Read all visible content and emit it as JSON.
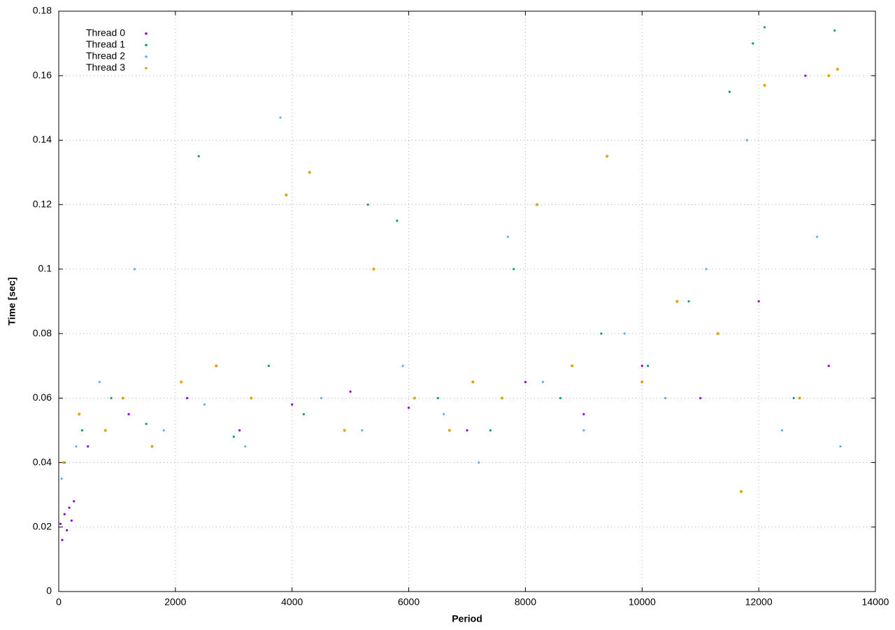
{
  "chart_data": {
    "type": "scatter",
    "x_label": "Period",
    "y_label": "Time [sec]",
    "xlim": [
      0,
      14000
    ],
    "ylim": [
      0,
      0.18
    ],
    "xticks": [
      0,
      2000,
      4000,
      6000,
      8000,
      10000,
      12000,
      14000
    ],
    "yticks": [
      0,
      0.02,
      0.04,
      0.06,
      0.08,
      0.1,
      0.12,
      0.14,
      0.16,
      0.18
    ],
    "grid": true,
    "legend": "top-left",
    "series": [
      {
        "name": "Thread 0",
        "color": "#9400d3",
        "x": [
          30,
          60,
          100,
          140,
          180,
          220,
          260,
          500,
          1200,
          2200,
          3100,
          4000,
          5000,
          6000,
          7000,
          8000,
          9000,
          10000,
          11000,
          12000,
          12800,
          13200
        ],
        "values": [
          0.021,
          0.016,
          0.024,
          0.019,
          0.026,
          0.022,
          0.028,
          0.045,
          0.055,
          0.06,
          0.05,
          0.058,
          0.062,
          0.057,
          0.05,
          0.065,
          0.055,
          0.07,
          0.06,
          0.09,
          0.16,
          0.07
        ]
      },
      {
        "name": "Thread 1",
        "color": "#009e73",
        "x": [
          100,
          400,
          900,
          1500,
          2400,
          3000,
          3600,
          4200,
          5300,
          5800,
          6500,
          7400,
          7800,
          8600,
          9300,
          10100,
          10800,
          11500,
          11900,
          12100,
          12600,
          13300
        ],
        "values": [
          0.04,
          0.05,
          0.06,
          0.052,
          0.135,
          0.048,
          0.07,
          0.055,
          0.12,
          0.115,
          0.06,
          0.05,
          0.1,
          0.06,
          0.08,
          0.07,
          0.09,
          0.155,
          0.17,
          0.175,
          0.06,
          0.174
        ]
      },
      {
        "name": "Thread 2",
        "color": "#56b4e9",
        "x": [
          50,
          300,
          700,
          1300,
          1800,
          2500,
          3200,
          3800,
          4500,
          5200,
          5900,
          6600,
          7200,
          7700,
          8300,
          9000,
          9700,
          10400,
          11100,
          11800,
          12400,
          13000,
          13400
        ],
        "values": [
          0.035,
          0.045,
          0.065,
          0.1,
          0.05,
          0.058,
          0.045,
          0.147,
          0.06,
          0.05,
          0.07,
          0.055,
          0.04,
          0.11,
          0.065,
          0.05,
          0.08,
          0.06,
          0.1,
          0.14,
          0.05,
          0.11,
          0.045
        ]
      },
      {
        "name": "Thread 3",
        "color": "#e69f00",
        "x": [
          80,
          350,
          800,
          1100,
          1600,
          2100,
          2700,
          3300,
          3900,
          4300,
          4900,
          5400,
          6100,
          6700,
          7100,
          7600,
          8200,
          8800,
          9400,
          10000,
          10600,
          11300,
          11700,
          12100,
          12700,
          13200,
          13350
        ],
        "values": [
          0.04,
          0.055,
          0.05,
          0.06,
          0.045,
          0.065,
          0.07,
          0.06,
          0.123,
          0.13,
          0.05,
          0.1,
          0.06,
          0.05,
          0.065,
          0.06,
          0.12,
          0.07,
          0.135,
          0.065,
          0.09,
          0.08,
          0.031,
          0.157,
          0.06,
          0.16,
          0.162
        ]
      }
    ]
  }
}
